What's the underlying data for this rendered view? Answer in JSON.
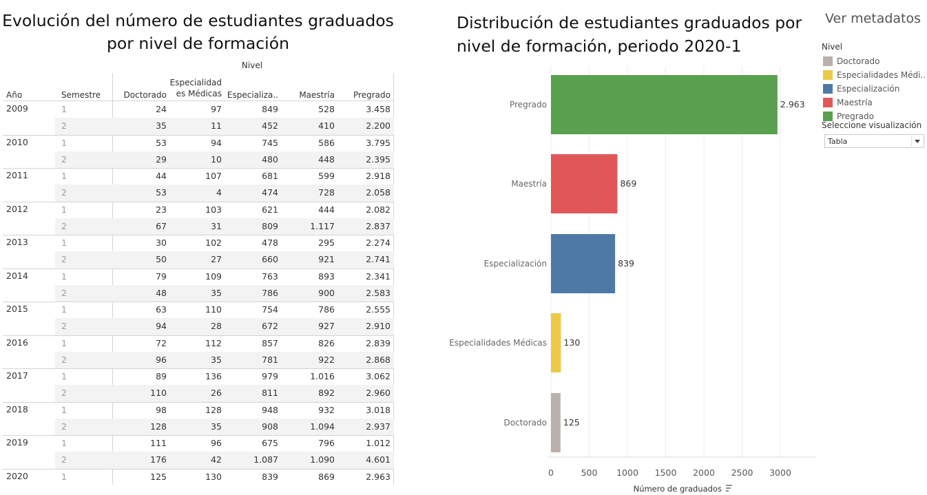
{
  "table": {
    "title_line1": "Evolución del número de estudiantes graduados",
    "title_line2": "por nivel de formación",
    "nivel_header": "Nivel",
    "columns": {
      "year": "Año",
      "semester": "Semestre",
      "doctorado": "Doctorado",
      "esp_medicas_line1": "Especialidad",
      "esp_medicas_line2": "es Médicas",
      "especializacion": "Especializa..",
      "maestria": "Maestría",
      "pregrado": "Pregrado"
    },
    "rows": [
      {
        "year": "2009",
        "semester": "1",
        "doctorado": "24",
        "esp_medicas": "97",
        "especializacion": "849",
        "maestria": "528",
        "pregrado": "3.458"
      },
      {
        "year": "",
        "semester": "2",
        "doctorado": "35",
        "esp_medicas": "11",
        "especializacion": "452",
        "maestria": "410",
        "pregrado": "2.200"
      },
      {
        "year": "2010",
        "semester": "1",
        "doctorado": "53",
        "esp_medicas": "94",
        "especializacion": "745",
        "maestria": "586",
        "pregrado": "3.795"
      },
      {
        "year": "",
        "semester": "2",
        "doctorado": "29",
        "esp_medicas": "10",
        "especializacion": "480",
        "maestria": "448",
        "pregrado": "2.395"
      },
      {
        "year": "2011",
        "semester": "1",
        "doctorado": "44",
        "esp_medicas": "107",
        "especializacion": "681",
        "maestria": "599",
        "pregrado": "2.918"
      },
      {
        "year": "",
        "semester": "2",
        "doctorado": "53",
        "esp_medicas": "4",
        "especializacion": "474",
        "maestria": "728",
        "pregrado": "2.058"
      },
      {
        "year": "2012",
        "semester": "1",
        "doctorado": "23",
        "esp_medicas": "103",
        "especializacion": "621",
        "maestria": "444",
        "pregrado": "2.082"
      },
      {
        "year": "",
        "semester": "2",
        "doctorado": "67",
        "esp_medicas": "31",
        "especializacion": "809",
        "maestria": "1.117",
        "pregrado": "2.837"
      },
      {
        "year": "2013",
        "semester": "1",
        "doctorado": "30",
        "esp_medicas": "102",
        "especializacion": "478",
        "maestria": "295",
        "pregrado": "2.274"
      },
      {
        "year": "",
        "semester": "2",
        "doctorado": "50",
        "esp_medicas": "27",
        "especializacion": "660",
        "maestria": "921",
        "pregrado": "2.741"
      },
      {
        "year": "2014",
        "semester": "1",
        "doctorado": "79",
        "esp_medicas": "109",
        "especializacion": "763",
        "maestria": "893",
        "pregrado": "2.341"
      },
      {
        "year": "",
        "semester": "2",
        "doctorado": "48",
        "esp_medicas": "35",
        "especializacion": "786",
        "maestria": "900",
        "pregrado": "2.583"
      },
      {
        "year": "2015",
        "semester": "1",
        "doctorado": "63",
        "esp_medicas": "110",
        "especializacion": "754",
        "maestria": "786",
        "pregrado": "2.555"
      },
      {
        "year": "",
        "semester": "2",
        "doctorado": "94",
        "esp_medicas": "28",
        "especializacion": "672",
        "maestria": "927",
        "pregrado": "2.910"
      },
      {
        "year": "2016",
        "semester": "1",
        "doctorado": "72",
        "esp_medicas": "112",
        "especializacion": "857",
        "maestria": "826",
        "pregrado": "2.839"
      },
      {
        "year": "",
        "semester": "2",
        "doctorado": "96",
        "esp_medicas": "35",
        "especializacion": "781",
        "maestria": "922",
        "pregrado": "2.868"
      },
      {
        "year": "2017",
        "semester": "1",
        "doctorado": "89",
        "esp_medicas": "136",
        "especializacion": "979",
        "maestria": "1.016",
        "pregrado": "3.062"
      },
      {
        "year": "",
        "semester": "2",
        "doctorado": "110",
        "esp_medicas": "26",
        "especializacion": "811",
        "maestria": "892",
        "pregrado": "2.960"
      },
      {
        "year": "2018",
        "semester": "1",
        "doctorado": "98",
        "esp_medicas": "128",
        "especializacion": "948",
        "maestria": "932",
        "pregrado": "3.018"
      },
      {
        "year": "",
        "semester": "2",
        "doctorado": "128",
        "esp_medicas": "35",
        "especializacion": "908",
        "maestria": "1.094",
        "pregrado": "2.937"
      },
      {
        "year": "2019",
        "semester": "1",
        "doctorado": "111",
        "esp_medicas": "96",
        "especializacion": "675",
        "maestria": "796",
        "pregrado": "1.012"
      },
      {
        "year": "",
        "semester": "2",
        "doctorado": "176",
        "esp_medicas": "42",
        "especializacion": "1.087",
        "maestria": "1.090",
        "pregrado": "4.601"
      },
      {
        "year": "2020",
        "semester": "1",
        "doctorado": "125",
        "esp_medicas": "130",
        "especializacion": "839",
        "maestria": "869",
        "pregrado": "2.963"
      }
    ]
  },
  "sidebar": {
    "metadata_link": "Ver metadatos",
    "legend_title": "Nivel",
    "legend": [
      {
        "label": "Doctorado",
        "color": "#bab0ac"
      },
      {
        "label": "Especialidades Médi..",
        "color": "#edc948"
      },
      {
        "label": "Especialización",
        "color": "#4e79a7"
      },
      {
        "label": "Maestría",
        "color": "#e15759"
      },
      {
        "label": "Pregrado",
        "color": "#59a14f"
      }
    ],
    "visualization_label": "Seleccione visualización",
    "visualization_value": "Tabla"
  },
  "chart_data": {
    "type": "bar",
    "orientation": "horizontal",
    "title_line1": "Distribución de estudiantes graduados por",
    "title_line2": "nivel de formación, periodo 2020-1",
    "categories": [
      "Pregrado",
      "Maestría",
      "Especialización",
      "Especialidades Médicas",
      "Doctorado"
    ],
    "values": [
      2963,
      869,
      839,
      130,
      125
    ],
    "value_labels": [
      "2.963",
      "869",
      "839",
      "130",
      "125"
    ],
    "colors": [
      "#59a14f",
      "#e15759",
      "#4e79a7",
      "#edc948",
      "#bab0ac"
    ],
    "xlabel": "Número de graduados",
    "xlim": [
      0,
      3400
    ],
    "xticks": [
      0,
      500,
      1000,
      1500,
      2000,
      2500,
      3000
    ],
    "grid": true
  }
}
